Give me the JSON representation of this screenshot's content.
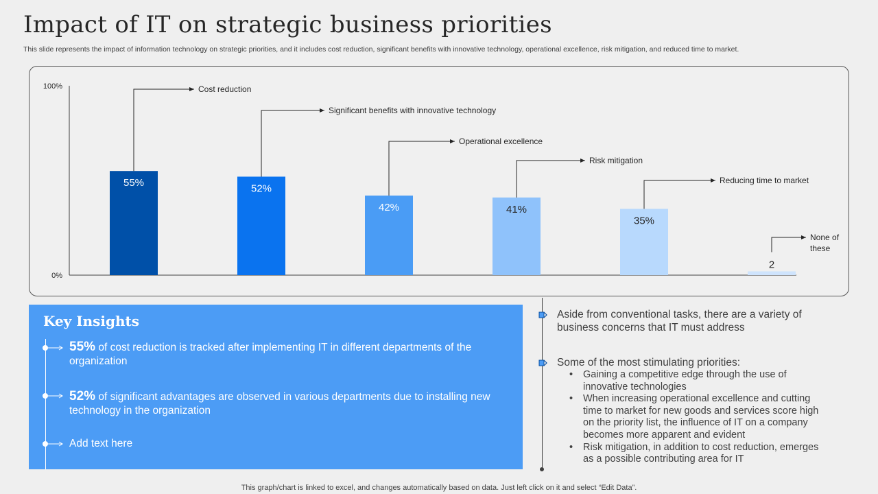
{
  "header": {
    "title": "Impact of IT on strategic business priorities",
    "subtitle": "This slide represents the impact of information technology on strategic priorities, and it includes cost reduction, significant benefits with innovative technology, operational excellence, risk mitigation, and reduced time to market."
  },
  "chart_data": {
    "type": "bar",
    "categories": [
      "Cost reduction",
      "Significant  benefits  with  innovative  technology",
      "Operational  excellence",
      "Risk mitigation",
      "Reducing  time to market",
      "None  of these"
    ],
    "values": [
      55,
      52,
      42,
      41,
      35,
      2
    ],
    "value_labels": [
      "55%",
      "52%",
      "42%",
      "41%",
      "35%",
      "2"
    ],
    "colors": [
      "#0050a8",
      "#0a73ef",
      "#4a9cf5",
      "#8fc2fb",
      "#b8d9fd",
      "#cfe4fd"
    ],
    "label_colors": [
      "#ffffff",
      "#ffffff",
      "#ffffff",
      "#262626",
      "#262626",
      "#262626"
    ],
    "ylim": [
      0,
      100
    ],
    "ytick_labels": [
      "0%",
      "100%"
    ],
    "title": "",
    "xlabel": "",
    "ylabel": ""
  },
  "insights": {
    "title": "Key Insights",
    "items": [
      {
        "highlight": "55%",
        "text": " of cost reduction is tracked after implementing IT in different departments of the organization"
      },
      {
        "highlight": "52%",
        "text": " of significant advantages are observed in various departments due to installing new technology  in the organization"
      },
      {
        "highlight": "",
        "text": "Add text here"
      }
    ]
  },
  "right_panel": {
    "point1": "Aside from conventional tasks, there are a variety of business concerns that IT must address",
    "point2": "Some of the most stimulating priorities:",
    "bullets": [
      "Gaining a competitive edge through the use of innovative technologies",
      "When increasing operational excellence and cutting time to market for new goods and services score high on the priority list, the influence of IT on a company becomes more apparent and evident",
      "Risk mitigation, in addition to cost reduction, emerges as a possible contributing area for IT"
    ]
  },
  "footer": "This graph/chart is linked to excel,  and changes automatically based on data. Just left click on it and select “Edit Data”."
}
